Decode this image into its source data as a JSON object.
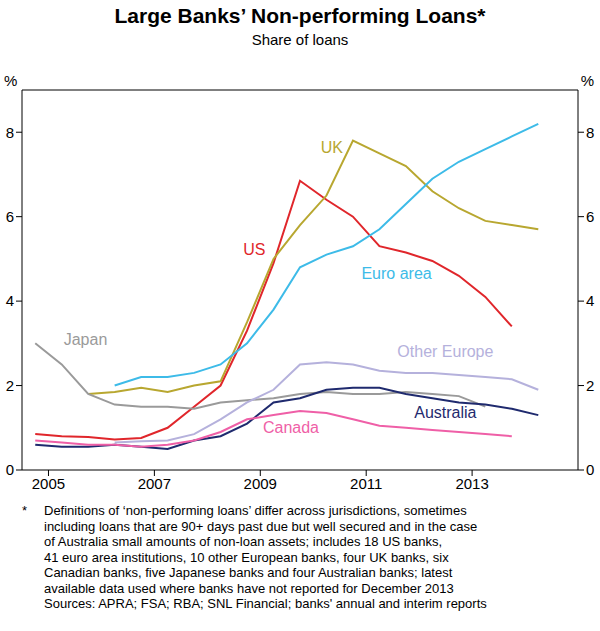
{
  "chart_data": {
    "type": "line",
    "title": "Large Banks’ Non-performing Loans*",
    "subtitle": "Share of loans",
    "ylabel": "%",
    "x": [
      2004.75,
      2005.25,
      2005.75,
      2006.25,
      2006.75,
      2007.25,
      2007.75,
      2008.25,
      2008.75,
      2009.25,
      2009.75,
      2010.25,
      2010.75,
      2011.25,
      2011.75,
      2012.25,
      2012.75,
      2013.25,
      2013.75,
      2014.25
    ],
    "xlim": [
      2004.5,
      2015
    ],
    "xticks": [
      2005,
      2007,
      2009,
      2011,
      2013
    ],
    "ylim": [
      0,
      9
    ],
    "yticks": [
      0,
      2,
      4,
      6,
      8
    ],
    "y2lim": [
      0,
      9
    ],
    "y2ticks": [
      0,
      2,
      4,
      6,
      8
    ],
    "grid": false,
    "series": [
      {
        "name": "US",
        "color": "#e0262b",
        "values": [
          0.85,
          0.8,
          0.78,
          0.72,
          0.76,
          1.0,
          1.5,
          2.0,
          3.3,
          4.9,
          6.85,
          6.4,
          6.0,
          5.3,
          5.15,
          4.95,
          4.6,
          4.1,
          3.4,
          null
        ]
      },
      {
        "name": "UK",
        "color": "#b8a730",
        "values": [
          null,
          null,
          1.8,
          1.85,
          1.95,
          1.85,
          2.0,
          2.1,
          3.5,
          5.0,
          5.8,
          6.5,
          7.8,
          7.5,
          7.2,
          6.6,
          6.2,
          5.9,
          5.8,
          5.7
        ]
      },
      {
        "name": "Euro area",
        "color": "#3dbbe8",
        "values": [
          null,
          null,
          null,
          2.0,
          2.2,
          2.2,
          2.3,
          2.5,
          3.0,
          3.8,
          4.8,
          5.1,
          5.3,
          5.7,
          6.3,
          6.9,
          7.3,
          7.6,
          7.9,
          8.2
        ]
      },
      {
        "name": "Japan",
        "color": "#9a9a9a",
        "values": [
          3.0,
          2.5,
          1.8,
          1.55,
          1.5,
          1.5,
          1.45,
          1.6,
          1.65,
          1.7,
          1.8,
          1.85,
          1.8,
          1.8,
          1.85,
          1.8,
          1.75,
          1.5,
          null,
          null
        ]
      },
      {
        "name": "Other Europe",
        "color": "#b5b1dc",
        "values": [
          null,
          null,
          null,
          0.65,
          0.68,
          0.7,
          0.85,
          1.2,
          1.6,
          1.9,
          2.5,
          2.55,
          2.5,
          2.35,
          2.3,
          2.3,
          2.25,
          2.2,
          2.15,
          1.9
        ]
      },
      {
        "name": "Australia",
        "color": "#1f2a6e",
        "values": [
          0.6,
          0.55,
          0.55,
          0.6,
          0.55,
          0.5,
          0.7,
          0.8,
          1.1,
          1.6,
          1.7,
          1.9,
          1.95,
          1.95,
          1.8,
          1.7,
          1.6,
          1.55,
          1.45,
          1.3
        ]
      },
      {
        "name": "Canada",
        "color": "#ef5fa7",
        "values": [
          0.7,
          0.65,
          0.6,
          0.6,
          0.55,
          0.6,
          0.7,
          0.9,
          1.2,
          1.3,
          1.4,
          1.35,
          1.2,
          1.05,
          1.0,
          0.95,
          0.9,
          0.85,
          0.8,
          null
        ]
      }
    ],
    "footnote": {
      "marker": "*",
      "lines": [
        "Definitions of ‘non-performing loans’ differ across jurisdictions, sometimes",
        "including loans that are 90+ days past due but well secured and in the case",
        "of Australia small amounts of non-loan assets; includes 18 US banks,",
        "41 euro area institutions, 10 other European banks, four UK banks, six",
        "Canadian banks, five Japanese banks and four Australian banks; latest",
        "available data used where banks have not reported for December 2013"
      ]
    },
    "sources": "Sources: APRA; FSA; RBA; SNL Financial; banks' annual and interim reports"
  }
}
